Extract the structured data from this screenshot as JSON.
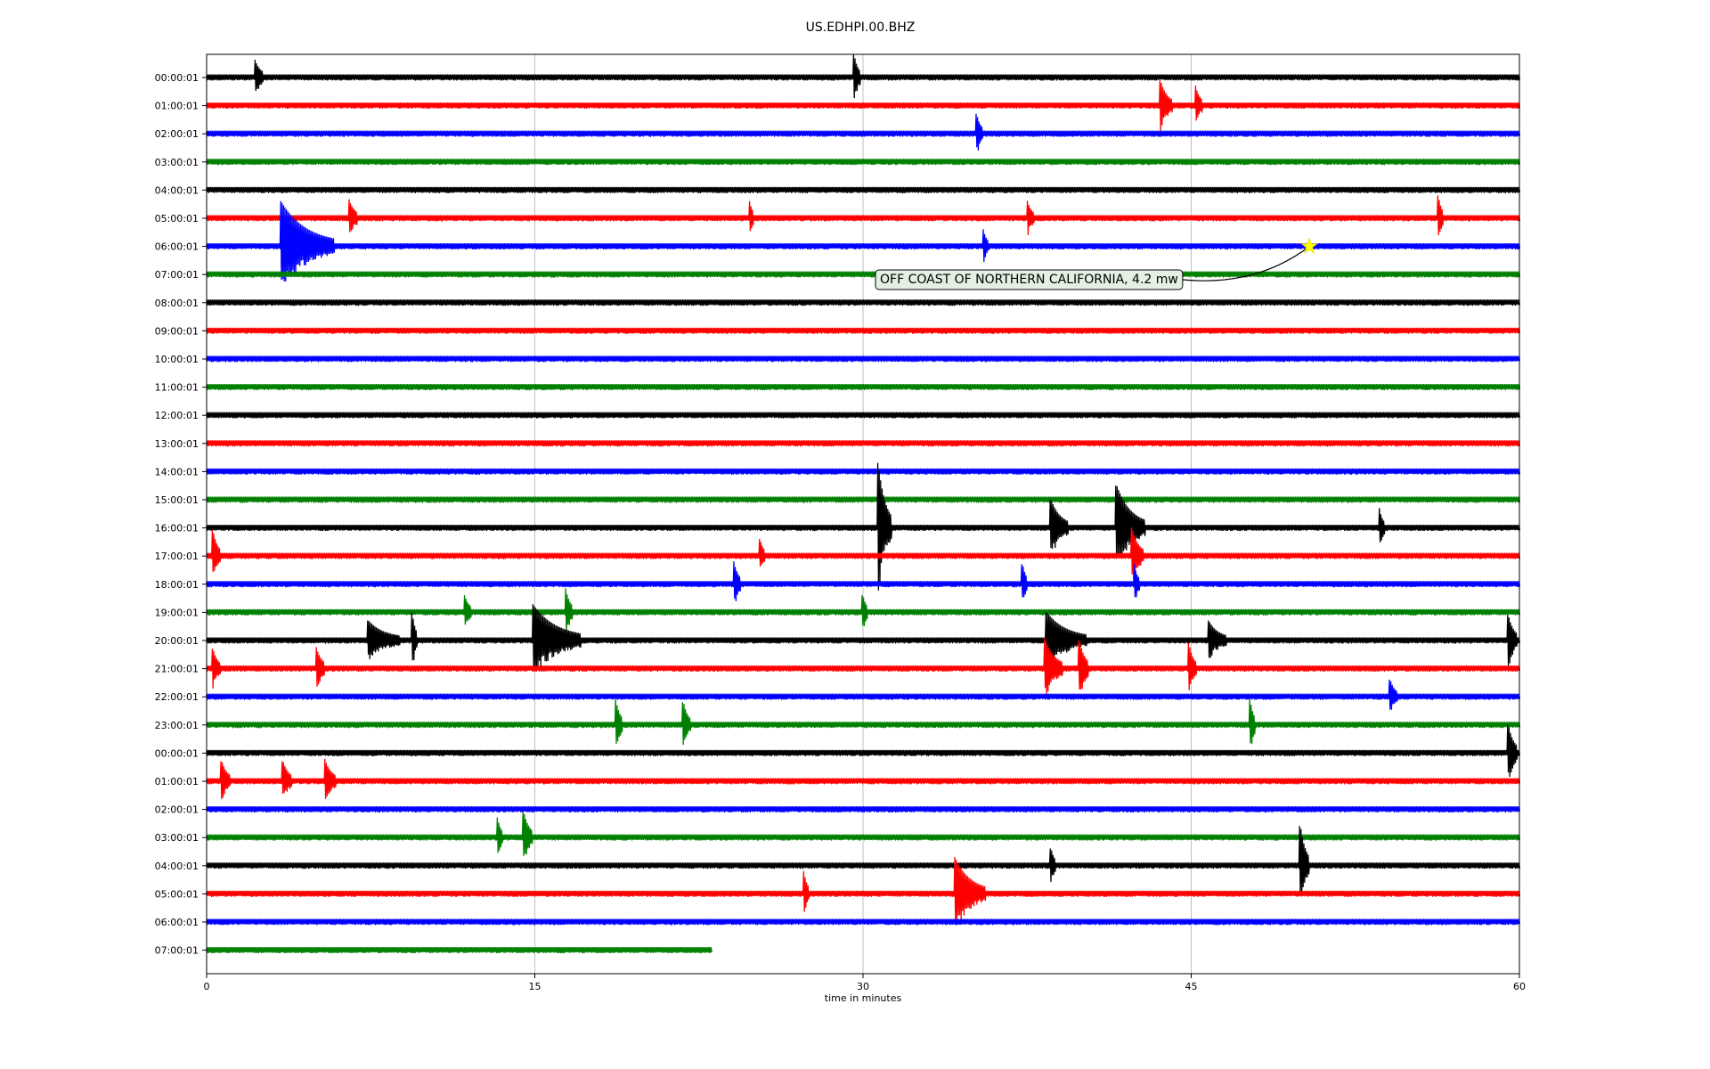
{
  "chart_data": {
    "type": "line",
    "title": "US.EDHPI.00.BHZ",
    "xlabel": "time in minutes",
    "xlim": [
      0,
      60
    ],
    "x_ticks": [
      0,
      15,
      30,
      45,
      60
    ],
    "grid": "vertical",
    "trace_colors": [
      "#000000",
      "#ff0000",
      "#0000ff",
      "#008000"
    ],
    "traces": [
      {
        "label": "00:00:01",
        "events": [
          [
            2.2,
            0.55,
            0.4
          ],
          [
            29.6,
            0.7,
            0.25
          ]
        ]
      },
      {
        "label": "01:00:01",
        "events": [
          [
            43.6,
            0.8,
            0.5
          ],
          [
            45.2,
            0.6,
            0.3
          ]
        ]
      },
      {
        "label": "02:00:01",
        "events": [
          [
            35.2,
            0.6,
            0.25
          ]
        ]
      },
      {
        "label": "03:00:01",
        "events": []
      },
      {
        "label": "04:00:01",
        "events": []
      },
      {
        "label": "05:00:01",
        "events": [
          [
            6.5,
            0.6,
            0.4
          ],
          [
            24.8,
            0.55,
            0.2
          ],
          [
            37.5,
            0.55,
            0.3
          ],
          [
            56.3,
            0.7,
            0.2
          ]
        ]
      },
      {
        "label": "06:00:01",
        "events": [
          [
            3.4,
            1.5,
            2.4
          ],
          [
            35.5,
            0.5,
            0.2
          ]
        ]
      },
      {
        "label": "07:00:01",
        "events": []
      },
      {
        "label": "08:00:01",
        "events": []
      },
      {
        "label": "09:00:01",
        "events": []
      },
      {
        "label": "10:00:01",
        "events": []
      },
      {
        "label": "11:00:01",
        "events": []
      },
      {
        "label": "12:00:01",
        "events": []
      },
      {
        "label": "13:00:01",
        "events": []
      },
      {
        "label": "14:00:01",
        "events": []
      },
      {
        "label": "15:00:01",
        "events": []
      },
      {
        "label": "16:00:01",
        "events": [
          [
            30.7,
            2.2,
            0.6
          ],
          [
            38.6,
            0.9,
            0.8
          ],
          [
            41.6,
            1.4,
            1.3
          ],
          [
            53.6,
            0.6,
            0.2
          ]
        ]
      },
      {
        "label": "17:00:01",
        "events": [
          [
            0.3,
            0.8,
            0.3
          ],
          [
            25.3,
            0.5,
            0.2
          ],
          [
            42.3,
            0.9,
            0.5
          ]
        ]
      },
      {
        "label": "18:00:01",
        "events": [
          [
            24.1,
            0.7,
            0.3
          ],
          [
            37.3,
            0.6,
            0.2
          ],
          [
            42.4,
            0.6,
            0.2
          ]
        ]
      },
      {
        "label": "19:00:01",
        "events": [
          [
            11.8,
            0.5,
            0.3
          ],
          [
            16.4,
            0.8,
            0.3
          ],
          [
            30.0,
            0.5,
            0.2
          ]
        ]
      },
      {
        "label": "20:00:01",
        "events": [
          [
            7.4,
            0.6,
            1.4
          ],
          [
            9.4,
            0.9,
            0.2
          ],
          [
            14.9,
            1.2,
            2.2
          ],
          [
            38.4,
            0.9,
            1.8
          ],
          [
            45.8,
            0.6,
            0.8
          ],
          [
            59.5,
            0.8,
            0.4
          ]
        ]
      },
      {
        "label": "21:00:01",
        "events": [
          [
            0.3,
            0.6,
            0.3
          ],
          [
            5.0,
            0.7,
            0.4
          ],
          [
            38.3,
            1.0,
            0.8
          ],
          [
            39.9,
            0.9,
            0.4
          ],
          [
            44.9,
            0.8,
            0.3
          ]
        ]
      },
      {
        "label": "22:00:01",
        "events": [
          [
            54.1,
            0.5,
            0.3
          ]
        ]
      },
      {
        "label": "23:00:01",
        "events": [
          [
            18.7,
            0.8,
            0.3
          ],
          [
            21.8,
            0.7,
            0.3
          ],
          [
            47.7,
            0.8,
            0.2
          ]
        ]
      },
      {
        "label": "00:00:01",
        "events": [
          [
            59.5,
            0.9,
            0.4
          ]
        ]
      },
      {
        "label": "01:00:01",
        "events": [
          [
            0.7,
            0.6,
            0.4
          ],
          [
            3.5,
            0.6,
            0.4
          ],
          [
            5.4,
            0.7,
            0.5
          ]
        ]
      },
      {
        "label": "02:00:01",
        "events": []
      },
      {
        "label": "03:00:01",
        "events": [
          [
            14.5,
            0.8,
            0.4
          ],
          [
            13.3,
            0.6,
            0.2
          ]
        ]
      },
      {
        "label": "04:00:01",
        "events": [
          [
            38.6,
            0.5,
            0.2
          ],
          [
            50.0,
            1.3,
            0.4
          ]
        ]
      },
      {
        "label": "05:00:01",
        "events": [
          [
            27.3,
            0.7,
            0.2
          ],
          [
            34.2,
            1.2,
            1.4
          ]
        ]
      },
      {
        "label": "06:00:01",
        "events": []
      },
      {
        "label": "07:00:01",
        "events": [],
        "end_minute": 23.1
      }
    ],
    "annotations": [
      {
        "text": "OFF COAST OF NORTHERN CALIFORNIA, 4.2 mw",
        "trace_index": 6,
        "minute": 50.4,
        "marker": "star",
        "marker_color": "#ffff00"
      }
    ]
  }
}
